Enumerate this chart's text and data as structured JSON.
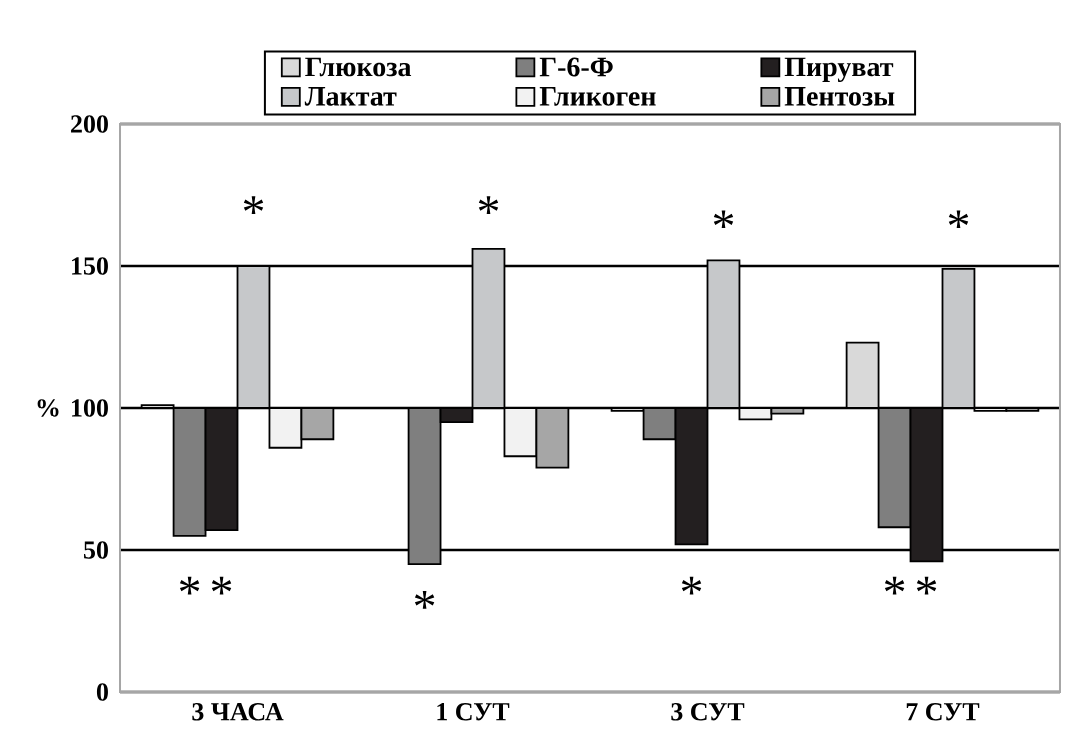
{
  "chart_data": {
    "type": "bar",
    "ylabel": "%",
    "categories": [
      "3 ЧАСА",
      "1 СУТ",
      "3 СУТ",
      "7 СУТ"
    ],
    "series": [
      {
        "name": "Глюкоза",
        "color": "#d9d9d9",
        "base": [
          100,
          null,
          100,
          100
        ],
        "values": [
          1,
          null,
          -1,
          23
        ]
      },
      {
        "name": "Г-6-Ф",
        "color": "#7f7f7f",
        "base": [
          100,
          100,
          100,
          100
        ],
        "values": [
          -45,
          -55,
          -11,
          -42
        ]
      },
      {
        "name": "Пируват",
        "color": "#231f20",
        "base": [
          100,
          100,
          100,
          100
        ],
        "values": [
          -43,
          -5,
          -48,
          -54
        ]
      },
      {
        "name": "Лактат",
        "color": "#c6c8ca",
        "base": [
          100,
          100,
          100,
          100
        ],
        "values": [
          50,
          56,
          52,
          49
        ]
      },
      {
        "name": "Гликоген",
        "color": "#f2f2f2",
        "base": [
          100,
          100,
          100,
          100
        ],
        "values": [
          -14,
          -17,
          -4,
          -1
        ]
      },
      {
        "name": "Пентозы",
        "color": "#a6a6a6",
        "base": [
          100,
          100,
          100,
          100
        ],
        "values": [
          -11,
          -21,
          -2,
          -1
        ]
      }
    ],
    "ylim": [
      0,
      200
    ],
    "yticks": [
      0,
      50,
      100,
      150,
      200
    ],
    "grid": "y",
    "legend": "top",
    "annotations": [
      "*",
      "*",
      "*",
      "*",
      "*",
      "*",
      "*",
      "*",
      "*",
      "*"
    ]
  }
}
